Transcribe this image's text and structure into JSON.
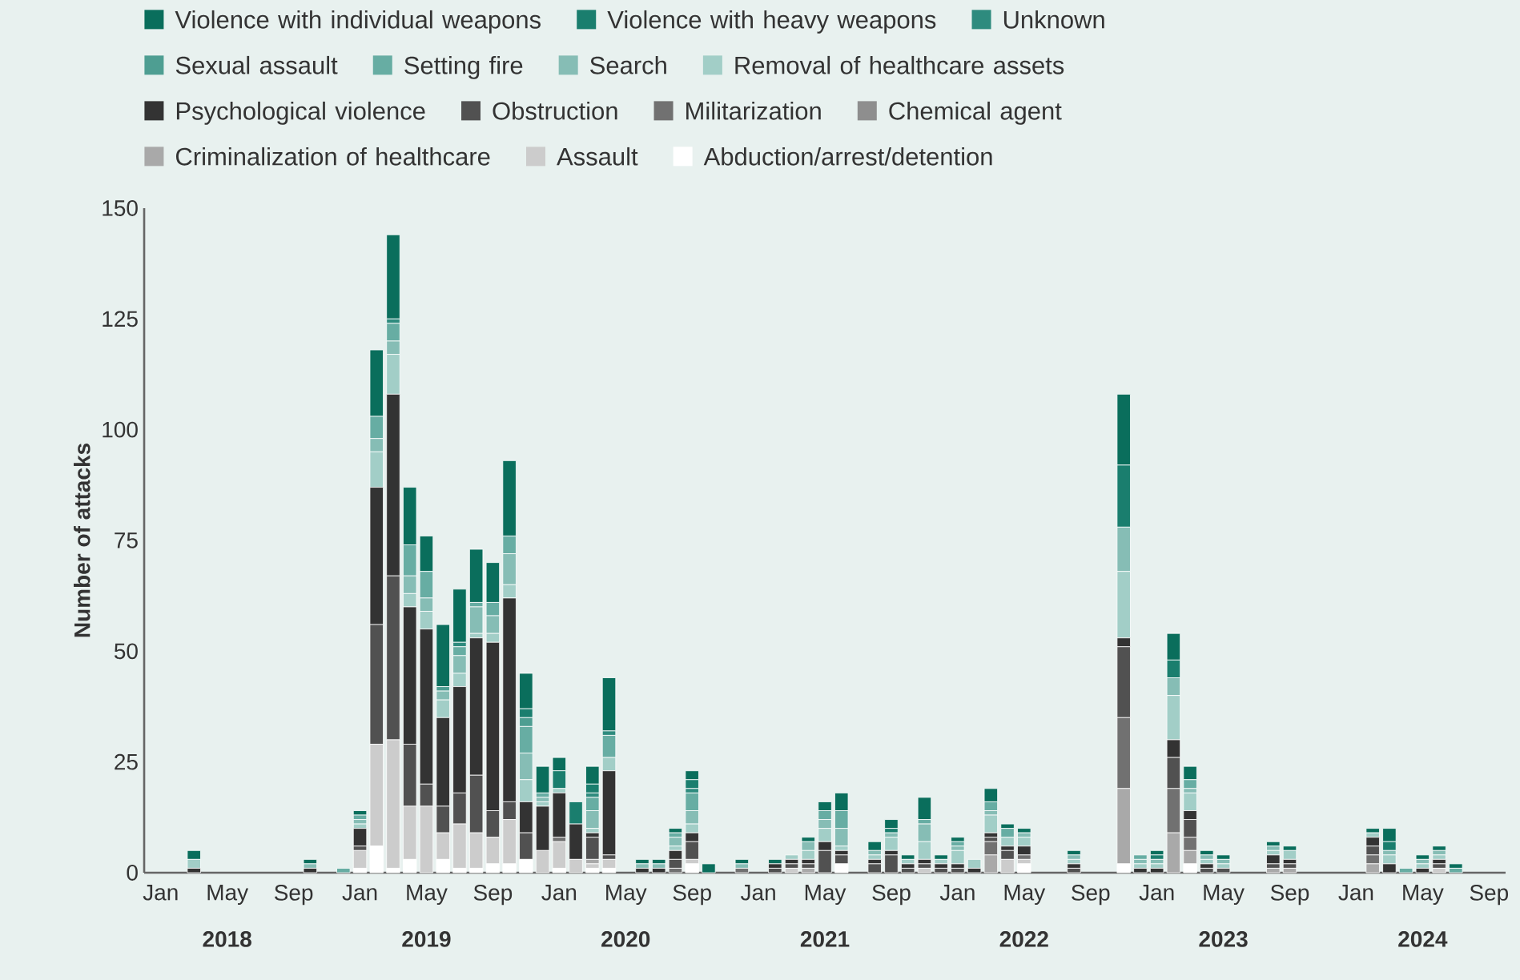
{
  "chart_data": {
    "type": "bar",
    "stacked": true,
    "ylabel": "Number of attacks",
    "legend": "top",
    "x": [
      "2018-03",
      "2018-10",
      "2018-12",
      "2019-01",
      "2019-02",
      "2019-03",
      "2019-04",
      "2019-05",
      "2019-06",
      "2019-07",
      "2019-08",
      "2019-09",
      "2019-10",
      "2019-11",
      "2019-12",
      "2020-01",
      "2020-02",
      "2020-03",
      "2020-04",
      "2020-06",
      "2020-07",
      "2020-08",
      "2020-09",
      "2020-10",
      "2020-12",
      "2021-02",
      "2021-03",
      "2021-04",
      "2021-05",
      "2021-06",
      "2021-08",
      "2021-09",
      "2021-10",
      "2021-11",
      "2021-12",
      "2022-01",
      "2022-02",
      "2022-03",
      "2022-04",
      "2022-05",
      "2022-08",
      "2022-11",
      "2022-12",
      "2023-01",
      "2023-02",
      "2023-03",
      "2023-04",
      "2023-05",
      "2023-08",
      "2023-09",
      "2024-02",
      "2024-03",
      "2024-04",
      "2024-05",
      "2024-06",
      "2024-07"
    ],
    "xlim": [
      "2017-12",
      "2024-10"
    ],
    "xticks": [
      {
        "value": "2018-01",
        "label": "Jan"
      },
      {
        "value": "2018-05",
        "label": "May"
      },
      {
        "value": "2018-09",
        "label": "Sep"
      },
      {
        "value": "2019-01",
        "label": "Jan"
      },
      {
        "value": "2019-05",
        "label": "May"
      },
      {
        "value": "2019-09",
        "label": "Sep"
      },
      {
        "value": "2020-01",
        "label": "Jan"
      },
      {
        "value": "2020-05",
        "label": "May"
      },
      {
        "value": "2020-09",
        "label": "Sep"
      },
      {
        "value": "2021-01",
        "label": "Jan"
      },
      {
        "value": "2021-05",
        "label": "May"
      },
      {
        "value": "2021-09",
        "label": "Sep"
      },
      {
        "value": "2022-01",
        "label": "Jan"
      },
      {
        "value": "2022-05",
        "label": "May"
      },
      {
        "value": "2022-09",
        "label": "Sep"
      },
      {
        "value": "2023-01",
        "label": "Jan"
      },
      {
        "value": "2023-05",
        "label": "May"
      },
      {
        "value": "2023-09",
        "label": "Sep"
      },
      {
        "value": "2024-01",
        "label": "Jan"
      },
      {
        "value": "2024-05",
        "label": "May"
      },
      {
        "value": "2024-09",
        "label": "Sep"
      }
    ],
    "ylim": [
      0,
      150
    ],
    "yticks": [
      0,
      25,
      50,
      75,
      100,
      125,
      150
    ],
    "annotations": [
      "2018",
      "2019",
      "2020",
      "2021",
      "2022",
      "2023",
      "2024"
    ],
    "series": [
      {
        "name": "Abduction/arrest/detention",
        "color": "#ffffff",
        "values": [
          null,
          null,
          null,
          1,
          6,
          1,
          3,
          null,
          3,
          1,
          1,
          2,
          2,
          3,
          null,
          1,
          null,
          1,
          1,
          null,
          null,
          null,
          2,
          null,
          null,
          null,
          null,
          null,
          null,
          2,
          null,
          null,
          null,
          null,
          null,
          null,
          null,
          null,
          null,
          2,
          null,
          2,
          null,
          null,
          null,
          2,
          null,
          null,
          null,
          null,
          null,
          null,
          null,
          null,
          null,
          null
        ]
      },
      {
        "name": "Assault",
        "color": "#cccccc",
        "values": [
          null,
          null,
          null,
          4,
          23,
          29,
          12,
          15,
          6,
          10,
          8,
          6,
          10,
          null,
          5,
          6,
          3,
          1,
          2,
          null,
          null,
          null,
          1,
          null,
          null,
          null,
          1,
          null,
          null,
          null,
          null,
          null,
          null,
          1,
          null,
          null,
          null,
          null,
          3,
          1,
          null,
          null,
          null,
          null,
          null,
          null,
          null,
          null,
          null,
          null,
          null,
          null,
          null,
          null,
          1,
          null
        ]
      },
      {
        "name": "Criminalization of healthcare",
        "color": "#a9a9a9",
        "values": [
          null,
          null,
          null,
          null,
          null,
          null,
          null,
          null,
          null,
          null,
          null,
          null,
          null,
          null,
          null,
          null,
          null,
          1,
          null,
          null,
          null,
          null,
          null,
          null,
          null,
          null,
          null,
          1,
          null,
          null,
          null,
          null,
          null,
          null,
          null,
          null,
          null,
          4,
          null,
          null,
          null,
          17,
          null,
          null,
          9,
          3,
          null,
          null,
          1,
          1,
          2,
          null,
          null,
          null,
          null,
          null
        ]
      },
      {
        "name": "Chemical agent",
        "color": "#8e8e8e",
        "values": [
          null,
          null,
          null,
          null,
          null,
          null,
          null,
          null,
          null,
          null,
          null,
          null,
          null,
          null,
          null,
          null,
          null,
          null,
          null,
          null,
          null,
          null,
          null,
          null,
          null,
          null,
          null,
          null,
          null,
          null,
          null,
          null,
          null,
          null,
          null,
          null,
          null,
          null,
          null,
          null,
          null,
          null,
          null,
          null,
          null,
          null,
          null,
          null,
          null,
          null,
          null,
          null,
          null,
          null,
          null,
          null
        ]
      },
      {
        "name": "Militarization",
        "color": "#717171",
        "values": [
          null,
          null,
          null,
          null,
          null,
          null,
          null,
          null,
          null,
          null,
          null,
          null,
          null,
          null,
          null,
          1,
          null,
          null,
          null,
          null,
          null,
          1,
          null,
          null,
          1,
          null,
          null,
          null,
          null,
          null,
          null,
          null,
          null,
          null,
          null,
          null,
          null,
          3,
          null,
          1,
          null,
          16,
          null,
          null,
          10,
          3,
          null,
          null,
          null,
          null,
          2,
          null,
          null,
          null,
          null,
          null
        ]
      },
      {
        "name": "Obstruction",
        "color": "#515151",
        "values": [
          null,
          null,
          null,
          1,
          27,
          37,
          14,
          5,
          6,
          7,
          13,
          6,
          4,
          6,
          null,
          null,
          null,
          5,
          1,
          null,
          null,
          2,
          4,
          null,
          null,
          1,
          1,
          1,
          5,
          2,
          2,
          4,
          1,
          1,
          1,
          1,
          null,
          1,
          2,
          null,
          1,
          16,
          null,
          null,
          7,
          4,
          1,
          1,
          1,
          1,
          2,
          null,
          null,
          null,
          1,
          null
        ]
      },
      {
        "name": "Psychological violence",
        "color": "#333333",
        "values": [
          1,
          1,
          null,
          4,
          31,
          41,
          31,
          35,
          20,
          24,
          31,
          38,
          46,
          7,
          10,
          10,
          8,
          1,
          19,
          1,
          1,
          2,
          2,
          null,
          null,
          1,
          1,
          1,
          2,
          1,
          1,
          1,
          1,
          1,
          1,
          1,
          1,
          1,
          1,
          2,
          1,
          2,
          1,
          1,
          4,
          2,
          1,
          null,
          2,
          1,
          2,
          2,
          null,
          1,
          1,
          null
        ]
      },
      {
        "name": "Removal of healthcare assets",
        "color": "#a2cec7",
        "values": [
          2,
          null,
          null,
          1,
          8,
          9,
          3,
          4,
          4,
          3,
          1,
          2,
          3,
          5,
          1,
          1,
          null,
          1,
          3,
          null,
          null,
          1,
          2,
          null,
          null,
          null,
          1,
          2,
          3,
          1,
          1,
          3,
          1,
          4,
          1,
          3,
          2,
          4,
          2,
          2,
          1,
          15,
          1,
          1,
          10,
          4,
          1,
          1,
          1,
          2,
          1,
          2,
          null,
          1,
          1,
          null
        ]
      },
      {
        "name": "Search",
        "color": "#86bdb5",
        "values": [
          null,
          1,
          null,
          1,
          3,
          3,
          4,
          3,
          2,
          4,
          6,
          4,
          7,
          6,
          1,
          null,
          null,
          4,
          null,
          1,
          1,
          2,
          3,
          null,
          1,
          null,
          null,
          2,
          2,
          4,
          1,
          1,
          null,
          4,
          null,
          1,
          null,
          1,
          null,
          1,
          1,
          10,
          1,
          1,
          4,
          1,
          1,
          1,
          1,
          null,
          null,
          1,
          null,
          1,
          1,
          null
        ]
      },
      {
        "name": "Setting fire",
        "color": "#67ada3",
        "values": [
          null,
          null,
          1,
          1,
          5,
          4,
          7,
          6,
          null,
          2,
          1,
          3,
          4,
          6,
          1,
          null,
          null,
          3,
          5,
          null,
          null,
          1,
          4,
          null,
          null,
          null,
          null,
          null,
          2,
          4,
          null,
          null,
          null,
          1,
          null,
          1,
          null,
          2,
          2,
          null,
          null,
          null,
          1,
          null,
          null,
          2,
          null,
          null,
          null,
          null,
          null,
          null,
          1,
          null,
          null,
          1
        ]
      },
      {
        "name": "Sexual assault",
        "color": "#4e9e92",
        "values": [
          null,
          null,
          null,
          null,
          null,
          null,
          null,
          null,
          1,
          null,
          null,
          null,
          null,
          2,
          null,
          null,
          null,
          null,
          null,
          null,
          null,
          null,
          null,
          null,
          null,
          null,
          null,
          null,
          null,
          null,
          null,
          null,
          null,
          null,
          null,
          null,
          null,
          null,
          null,
          null,
          null,
          null,
          null,
          null,
          null,
          null,
          null,
          null,
          null,
          null,
          null,
          null,
          null,
          null,
          null,
          null
        ]
      },
      {
        "name": "Unknown",
        "color": "#2e8b7e",
        "values": [
          null,
          null,
          null,
          null,
          null,
          1,
          null,
          null,
          null,
          1,
          null,
          null,
          null,
          null,
          null,
          null,
          null,
          1,
          1,
          null,
          null,
          null,
          1,
          null,
          null,
          null,
          null,
          null,
          null,
          null,
          null,
          null,
          null,
          null,
          null,
          null,
          null,
          null,
          null,
          null,
          null,
          null,
          null,
          null,
          null,
          null,
          null,
          null,
          null,
          null,
          null,
          null,
          null,
          null,
          null,
          null
        ]
      },
      {
        "name": "Violence with heavy weapons",
        "color": "#1a7e6e",
        "values": [
          null,
          null,
          null,
          null,
          null,
          null,
          null,
          null,
          null,
          null,
          null,
          null,
          null,
          2,
          null,
          4,
          5,
          2,
          null,
          null,
          null,
          null,
          2,
          null,
          null,
          null,
          null,
          null,
          null,
          null,
          null,
          1,
          null,
          null,
          null,
          null,
          null,
          null,
          null,
          null,
          null,
          14,
          null,
          1,
          4,
          null,
          null,
          null,
          null,
          null,
          null,
          2,
          null,
          null,
          null,
          null
        ]
      },
      {
        "name": "Violence with individual weapons",
        "color": "#0a6e5c",
        "values": [
          2,
          1,
          null,
          1,
          15,
          19,
          13,
          8,
          14,
          12,
          12,
          9,
          17,
          8,
          6,
          3,
          null,
          4,
          12,
          1,
          1,
          1,
          2,
          2,
          1,
          1,
          null,
          1,
          2,
          4,
          2,
          2,
          1,
          5,
          1,
          1,
          null,
          3,
          1,
          1,
          1,
          16,
          null,
          1,
          6,
          3,
          1,
          1,
          1,
          1,
          1,
          3,
          null,
          1,
          1,
          1
        ]
      }
    ]
  }
}
